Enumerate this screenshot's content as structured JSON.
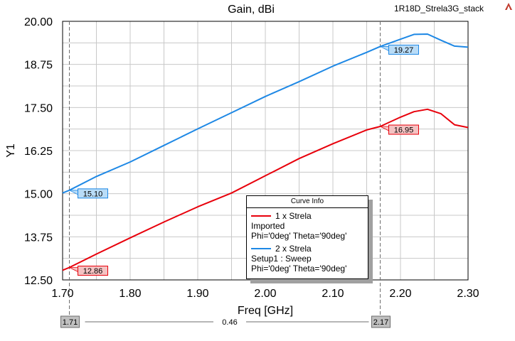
{
  "title": "Gain, dBi",
  "project_label": "1R18D_Strela3G_stack",
  "chart_data": {
    "type": "line",
    "xlabel": "Freq [GHz]",
    "ylabel": "Y1",
    "xlim": [
      1.7,
      2.3
    ],
    "ylim": [
      12.5,
      20.0
    ],
    "x_ticks": [
      "1.70",
      "1.80",
      "1.90",
      "2.00",
      "2.10",
      "2.20",
      "2.30"
    ],
    "y_ticks": [
      "12.50",
      "13.75",
      "15.00",
      "16.25",
      "17.50",
      "18.75",
      "20.00"
    ],
    "grid": true,
    "legend_position": "bottom-center",
    "series": [
      {
        "name": "1 x Strela",
        "color": "#e8000b",
        "x": [
          1.7,
          1.71,
          1.75,
          1.8,
          1.85,
          1.9,
          1.95,
          2.0,
          2.05,
          2.1,
          2.15,
          2.17,
          2.2,
          2.22,
          2.24,
          2.26,
          2.28,
          2.3
        ],
        "y": [
          12.78,
          12.86,
          13.25,
          13.72,
          14.18,
          14.62,
          15.02,
          15.52,
          16.02,
          16.45,
          16.85,
          16.95,
          17.22,
          17.38,
          17.45,
          17.32,
          17.0,
          16.92
        ]
      },
      {
        "name": "2 x Strela",
        "color": "#1e88e5",
        "x": [
          1.7,
          1.71,
          1.75,
          1.8,
          1.85,
          1.9,
          1.95,
          2.0,
          2.05,
          2.1,
          2.15,
          2.17,
          2.2,
          2.22,
          2.24,
          2.26,
          2.28,
          2.3
        ],
        "y": [
          15.02,
          15.1,
          15.5,
          15.92,
          16.4,
          16.88,
          17.35,
          17.82,
          18.25,
          18.7,
          19.1,
          19.27,
          19.48,
          19.62,
          19.63,
          19.45,
          19.28,
          19.25
        ]
      }
    ],
    "markers": [
      {
        "series": 0,
        "x": 1.71,
        "label": "12.86"
      },
      {
        "series": 1,
        "x": 1.71,
        "label": "15.10"
      },
      {
        "series": 0,
        "x": 2.17,
        "label": "16.95"
      },
      {
        "series": 1,
        "x": 2.17,
        "label": "19.27"
      }
    ],
    "cursors": {
      "left": "1.71",
      "right": "2.17",
      "delta": "0.46"
    }
  },
  "legend": {
    "title": "Curve Info",
    "entries": [
      {
        "name": "1 x Strela",
        "line1": "Imported",
        "line2": "Phi='0deg' Theta='90deg'",
        "color": "#e8000b"
      },
      {
        "name": "2 x Strela",
        "line1": "Setup1 : Sweep",
        "line2": "Phi='0deg' Theta='90deg'",
        "color": "#1e88e5"
      }
    ]
  }
}
